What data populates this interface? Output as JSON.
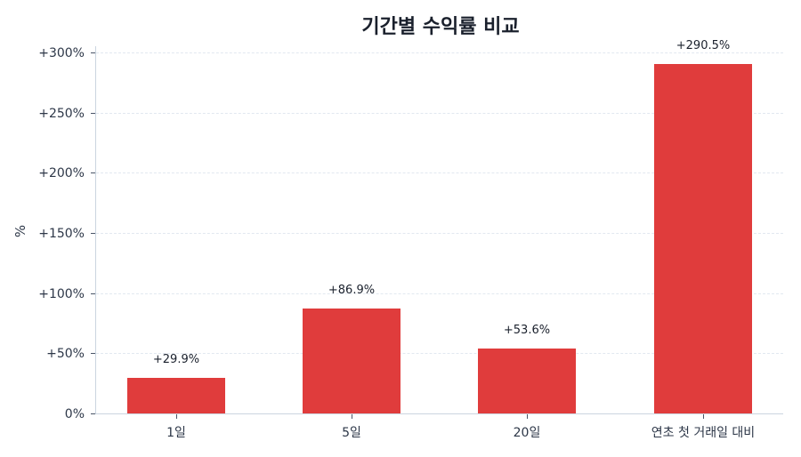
{
  "chart_data": {
    "type": "bar",
    "title": "기간별 수익률 비교",
    "xlabel": "",
    "ylabel": "%",
    "categories": [
      "1일",
      "5일",
      "20일",
      "연초 첫 거래일 대비"
    ],
    "values": [
      29.9,
      86.9,
      53.6,
      290.5
    ],
    "data_labels": [
      "+29.9%",
      "+86.9%",
      "+53.6%",
      "+290.5%"
    ],
    "ylim": [
      0,
      300
    ],
    "yticks": [
      0,
      50,
      100,
      150,
      200,
      250,
      300
    ],
    "ytick_labels": [
      "0%",
      "+50%",
      "+100%",
      "+150%",
      "+200%",
      "+250%",
      "+300%"
    ],
    "grid": true,
    "grid_style": "dashed horizontal",
    "bar_color": "#e03c3c",
    "legend": null
  }
}
